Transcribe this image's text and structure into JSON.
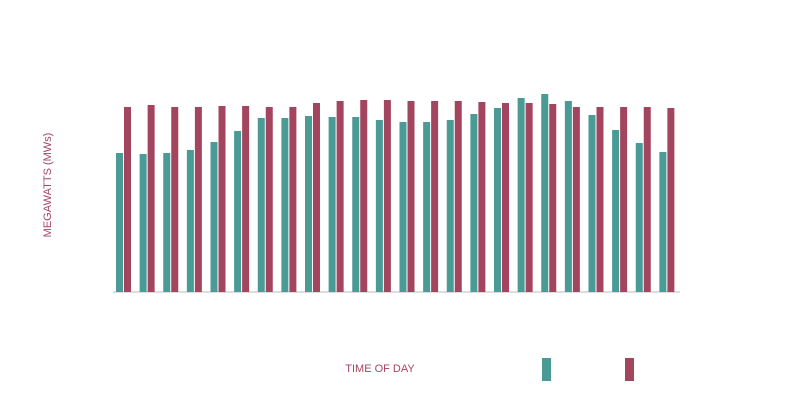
{
  "chart_data": {
    "type": "bar",
    "y_label": "MEGAWATTS (MWs)",
    "x_label": "TIME OF DAY",
    "categories": [
      null,
      null,
      null,
      null,
      null,
      null,
      null,
      null,
      null,
      null,
      null,
      null,
      null,
      null,
      null,
      null,
      null,
      null,
      null,
      null,
      null,
      null,
      null,
      null
    ],
    "series": [
      {
        "color": "#4a9a96",
        "values": [
          139,
          138,
          139,
          142,
          150,
          161,
          174,
          174,
          176,
          175,
          175,
          172,
          170,
          170,
          172,
          178,
          184,
          194,
          198,
          191,
          177,
          162,
          149,
          140
        ]
      },
      {
        "color": "#a3455f",
        "values": [
          185,
          187,
          185,
          185,
          186,
          186,
          185,
          185,
          189,
          191,
          192,
          192,
          191,
          191,
          191,
          190,
          189,
          189,
          188,
          185,
          185,
          185,
          185,
          184
        ]
      }
    ],
    "ylim": [
      0,
      200
    ],
    "grid": false
  }
}
